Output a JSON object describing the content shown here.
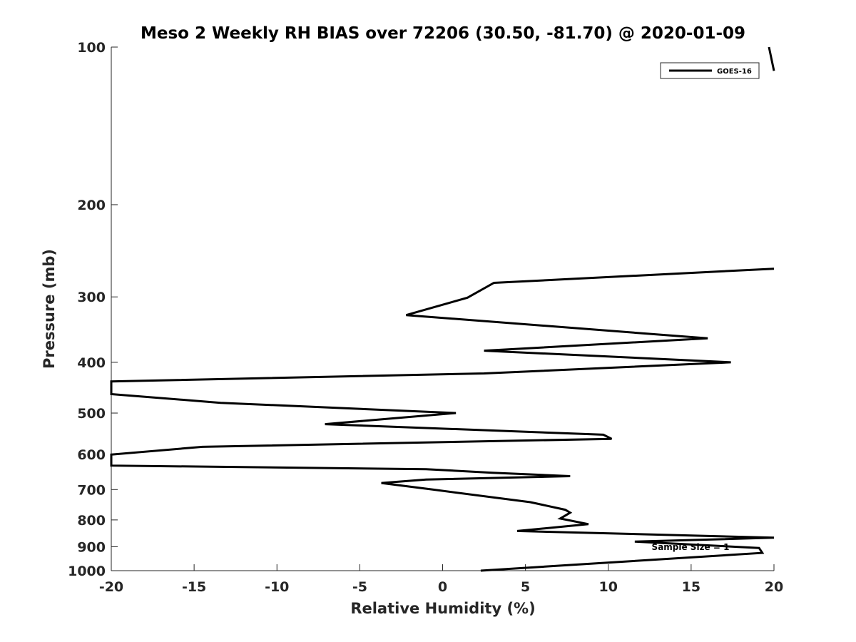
{
  "chart_data": {
    "type": "line",
    "title": "Meso 2 Weekly RH BIAS over 72206 (30.50, -81.70) @ 2020-01-09",
    "xlabel": "Relative Humidity (%)",
    "ylabel": "Pressure (mb)",
    "xlim": [
      -20,
      20
    ],
    "ylim": [
      100,
      1000
    ],
    "y_scale": "log",
    "y_reversed": true,
    "grid": false,
    "legend_position": "top-right",
    "x_ticks": [
      -20,
      -15,
      -10,
      -5,
      0,
      5,
      10,
      15,
      20
    ],
    "x_tick_labels": [
      "-20",
      "-15",
      "-10",
      "-5",
      "0",
      "5",
      "10",
      "15",
      "20"
    ],
    "y_ticks": [
      100,
      200,
      300,
      400,
      500,
      600,
      700,
      800,
      900,
      1000
    ],
    "y_tick_labels": [
      "100",
      "200",
      "300",
      "400",
      "500",
      "600",
      "700",
      "800",
      "900",
      "1000"
    ],
    "annotation": "Sample Size = 1",
    "series": [
      {
        "name": "GOES-16",
        "color": "#000000",
        "points": [
          {
            "x": 2.3,
            "p": 1000
          },
          {
            "x": 7.8,
            "p": 975
          },
          {
            "x": 19.3,
            "p": 925
          },
          {
            "x": 19.1,
            "p": 905
          },
          {
            "x": 11.6,
            "p": 880
          },
          {
            "x": 20.0,
            "p": 865
          },
          {
            "x": 14.0,
            "p": 855
          },
          {
            "x": 4.5,
            "p": 840
          },
          {
            "x": 8.8,
            "p": 815
          },
          {
            "x": 7.1,
            "p": 795
          },
          {
            "x": 7.7,
            "p": 775
          },
          {
            "x": 7.4,
            "p": 765
          },
          {
            "x": 5.3,
            "p": 740
          },
          {
            "x": -0.6,
            "p": 700
          },
          {
            "x": -3.7,
            "p": 680
          },
          {
            "x": -1.0,
            "p": 670
          },
          {
            "x": 7.7,
            "p": 660
          },
          {
            "x": 3.0,
            "p": 650
          },
          {
            "x": -1.0,
            "p": 640
          },
          {
            "x": -20.0,
            "p": 630
          },
          {
            "x": -20.0,
            "p": 600
          },
          {
            "x": -14.5,
            "p": 580
          },
          {
            "x": 10.2,
            "p": 560
          },
          {
            "x": 9.7,
            "p": 550
          },
          {
            "x": -7.1,
            "p": 525
          },
          {
            "x": 0.8,
            "p": 500
          },
          {
            "x": -13.4,
            "p": 478
          },
          {
            "x": -20.0,
            "p": 460
          },
          {
            "x": -20.0,
            "p": 435
          },
          {
            "x": 2.5,
            "p": 420
          },
          {
            "x": 17.4,
            "p": 400
          },
          {
            "x": 2.5,
            "p": 380
          },
          {
            "x": 16.0,
            "p": 360
          },
          {
            "x": -2.2,
            "p": 325
          },
          {
            "x": 1.5,
            "p": 301
          },
          {
            "x": 3.1,
            "p": 282
          },
          {
            "x": 20.0,
            "p": 265
          }
        ]
      },
      {
        "name": "",
        "color": "#000000",
        "points": [
          {
            "x": 19.7,
            "p": 100
          },
          {
            "x": 20.0,
            "p": 111
          }
        ]
      }
    ]
  }
}
